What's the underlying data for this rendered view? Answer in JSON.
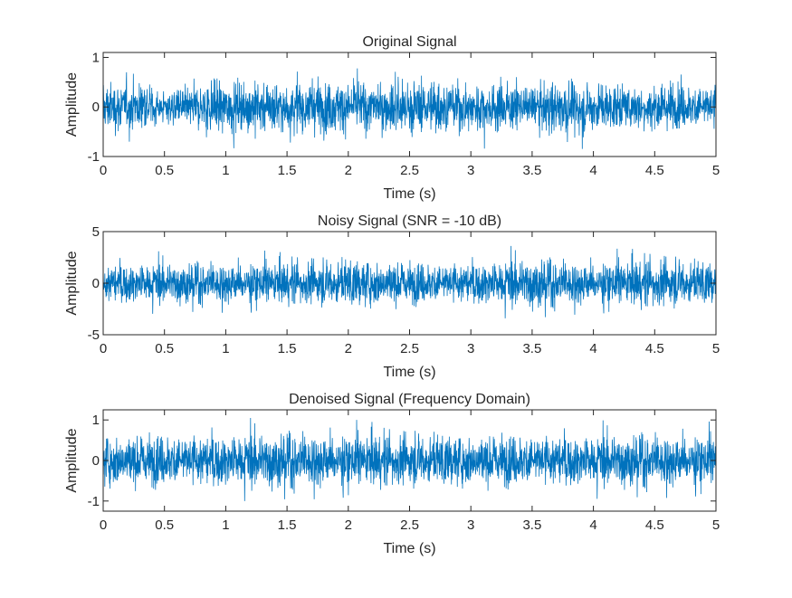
{
  "chart_data": [
    {
      "type": "line",
      "title": "Original Signal",
      "xlabel": "Time (s)",
      "ylabel": "Amplitude",
      "xlim": [
        0,
        5
      ],
      "ylim": [
        -1,
        1.1
      ],
      "xticks": [
        "0",
        "0.5",
        "1",
        "1.5",
        "2",
        "2.5",
        "3",
        "3.5",
        "4",
        "4.5",
        "5"
      ],
      "yticks": [
        "-1",
        "0",
        "1"
      ],
      "ytick_values": [
        -1,
        0,
        1
      ],
      "grid": false,
      "color": "#0072BD",
      "series": [
        {
          "x": [
            0,
            0.25,
            0.5,
            0.75,
            0.9,
            1.0,
            1.25,
            1.5,
            1.75,
            2.0,
            2.25,
            2.5,
            2.75,
            3.0,
            3.25,
            3.4,
            3.5,
            3.75,
            4.0,
            4.25,
            4.5,
            4.75,
            5.0
          ],
          "envelope": [
            0.9,
            0.8,
            0.6,
            0.75,
            1.05,
            0.85,
            0.95,
            1.0,
            0.95,
            0.85,
            0.9,
            0.95,
            0.9,
            0.8,
            1.0,
            0.6,
            0.7,
            1.0,
            0.85,
            0.75,
            0.8,
            0.75,
            0.8
          ]
        }
      ]
    },
    {
      "type": "line",
      "title": "Noisy Signal (SNR = -10 dB)",
      "xlabel": "Time (s)",
      "ylabel": "Amplitude",
      "xlim": [
        0,
        5
      ],
      "ylim": [
        -5,
        5
      ],
      "xticks": [
        "0",
        "0.5",
        "1",
        "1.5",
        "2",
        "2.5",
        "3",
        "3.5",
        "4",
        "4.5",
        "5"
      ],
      "yticks": [
        "-5",
        "0",
        "5"
      ],
      "ytick_values": [
        -5,
        0,
        5
      ],
      "grid": false,
      "color": "#0072BD",
      "series": [
        {
          "x": [
            0,
            0.5,
            1.0,
            1.5,
            2.0,
            2.5,
            3.0,
            3.5,
            4.0,
            4.5,
            5.0
          ],
          "envelope": [
            3.3,
            3.3,
            3.4,
            3.5,
            3.9,
            3.5,
            3.4,
            4.1,
            3.4,
            4.1,
            3.4
          ]
        }
      ]
    },
    {
      "type": "line",
      "title": "Denoised Signal (Frequency Domain)",
      "xlabel": "Time (s)",
      "ylabel": "Amplitude",
      "xlim": [
        0,
        5
      ],
      "ylim": [
        -1.25,
        1.25
      ],
      "xticks": [
        "0",
        "0.5",
        "1",
        "1.5",
        "2",
        "2.5",
        "3",
        "3.5",
        "4",
        "4.5",
        "5"
      ],
      "yticks": [
        "-1",
        "0",
        "1"
      ],
      "ytick_values": [
        -1,
        0,
        1
      ],
      "grid": false,
      "color": "#0072BD",
      "series": [
        {
          "x": [
            0,
            0.5,
            1.0,
            1.5,
            2.0,
            2.5,
            3.0,
            3.5,
            4.0,
            4.5,
            5.0
          ],
          "envelope": [
            1.05,
            1.1,
            1.1,
            1.15,
            1.1,
            1.1,
            1.05,
            1.1,
            1.05,
            1.1,
            1.05
          ]
        }
      ]
    }
  ]
}
